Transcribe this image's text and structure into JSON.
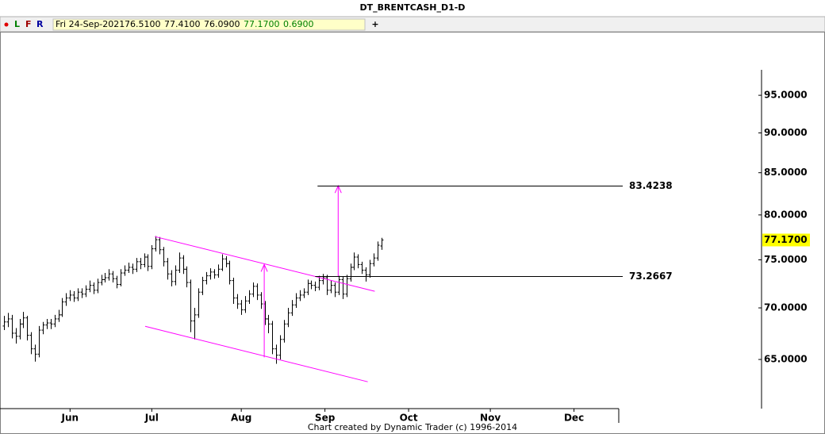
{
  "header": {
    "title": "DT_BRENTCASH_D1-D",
    "buttons": [
      "L",
      "F",
      "R"
    ],
    "date": "Fri 24-Sep-2021",
    "quote": [
      "76.5100",
      "77.4100",
      "76.0900",
      "77.1700",
      "0.6900"
    ]
  },
  "footer": "Chart created by Dynamic Trader  (c) 1996-2014",
  "chart_data": {
    "type": "ohlc",
    "color": "#000000",
    "annotation_color": "#ff00ff",
    "log_scale": true,
    "xlim": [
      -1,
      158
    ],
    "ylim": [
      60.57,
      98.54
    ],
    "xticks": [
      {
        "value": 17,
        "label": "Jun"
      },
      {
        "value": 38,
        "label": "Jul"
      },
      {
        "value": 61,
        "label": "Aug"
      },
      {
        "value": 82.5,
        "label": "Sep"
      },
      {
        "value": 104,
        "label": "Oct"
      },
      {
        "value": 125,
        "label": "Nov"
      },
      {
        "value": 146.5,
        "label": "Dec"
      }
    ],
    "yticks": [
      {
        "value": 65,
        "label": "65.0000"
      },
      {
        "value": 70,
        "label": "70.0000"
      },
      {
        "value": 75,
        "label": "75.0000"
      },
      {
        "value": 80,
        "label": "80.0000"
      },
      {
        "value": 85,
        "label": "85.0000"
      },
      {
        "value": 90,
        "label": "90.0000"
      },
      {
        "value": 95,
        "label": "95.0000"
      }
    ],
    "open": [
      68.2,
      68.6,
      68.9,
      67.5,
      67.2,
      68.4,
      69.0,
      67.3,
      66.0,
      65.5,
      67.8,
      68.3,
      68.5,
      68.4,
      68.9,
      69.3,
      70.6,
      71.0,
      71.3,
      71.0,
      71.6,
      71.4,
      71.9,
      72.3,
      71.8,
      72.6,
      72.9,
      73.1,
      73.5,
      73.0,
      72.4,
      73.6,
      73.9,
      74.2,
      74.0,
      74.8,
      74.5,
      75.3,
      74.3,
      76.2,
      77.2,
      76.1,
      74.8,
      73.5,
      72.7,
      73.9,
      75.2,
      74.0,
      72.6,
      68.7,
      69.3,
      71.6,
      72.8,
      73.3,
      73.7,
      73.4,
      74.0,
      75.1,
      74.6,
      72.8,
      71.0,
      70.4,
      69.8,
      70.7,
      71.4,
      72.2,
      71.3,
      70.4,
      68.9,
      68.4,
      66.0,
      65.4,
      66.9,
      68.4,
      69.5,
      70.3,
      71.0,
      71.3,
      71.6,
      72.5,
      72.3,
      72.1,
      72.8,
      73.1,
      71.8,
      72.3,
      71.6,
      72.9,
      71.4,
      73.0,
      74.2,
      75.3,
      74.5,
      73.9,
      73.4,
      74.6,
      75.2,
      76.51
    ],
    "high": [
      69.2,
      69.5,
      69.3,
      68.0,
      68.9,
      69.6,
      69.2,
      67.6,
      66.4,
      68.2,
      68.6,
      68.9,
      68.9,
      69.3,
      69.8,
      71.0,
      71.5,
      71.8,
      71.7,
      72.0,
      72.0,
      72.3,
      72.8,
      72.6,
      73.0,
      73.4,
      73.6,
      74.0,
      73.8,
      73.3,
      74.0,
      74.4,
      74.7,
      74.6,
      75.2,
      75.2,
      75.7,
      75.6,
      76.6,
      77.6,
      77.5,
      76.4,
      75.2,
      73.9,
      74.4,
      75.8,
      75.5,
      74.3,
      72.9,
      70.0,
      72.0,
      73.2,
      73.7,
      74.1,
      74.0,
      74.5,
      75.6,
      75.4,
      74.9,
      73.1,
      71.4,
      70.8,
      71.2,
      71.8,
      72.6,
      72.5,
      71.6,
      70.7,
      69.3,
      68.7,
      66.4,
      67.3,
      68.8,
      70.0,
      70.8,
      71.5,
      71.8,
      72.0,
      72.9,
      72.8,
      72.7,
      73.3,
      73.5,
      73.4,
      72.8,
      72.6,
      73.3,
      73.2,
      73.4,
      74.6,
      75.8,
      75.6,
      74.8,
      74.2,
      75.0,
      75.7,
      77.0,
      77.41
    ],
    "low": [
      67.8,
      68.1,
      67.0,
      66.5,
      66.9,
      68.0,
      66.8,
      65.5,
      64.8,
      65.2,
      67.4,
      67.9,
      67.9,
      68.1,
      68.6,
      69.1,
      70.2,
      70.7,
      70.6,
      70.7,
      71.0,
      71.1,
      71.6,
      71.4,
      71.5,
      72.3,
      72.6,
      72.8,
      72.6,
      72.0,
      72.2,
      73.3,
      73.6,
      73.5,
      73.7,
      74.0,
      74.2,
      73.8,
      74.0,
      75.9,
      75.6,
      74.3,
      72.9,
      72.2,
      72.3,
      73.6,
      73.5,
      72.1,
      67.6,
      66.9,
      69.0,
      71.3,
      72.4,
      72.9,
      73.0,
      73.1,
      73.8,
      74.2,
      72.4,
      70.4,
      69.9,
      69.3,
      69.5,
      70.4,
      71.1,
      70.8,
      69.9,
      68.3,
      67.5,
      65.5,
      64.6,
      65.0,
      66.6,
      68.1,
      69.2,
      70.0,
      70.7,
      71.0,
      71.3,
      71.9,
      71.7,
      71.8,
      72.4,
      71.3,
      71.5,
      71.1,
      71.3,
      70.9,
      71.1,
      72.7,
      73.9,
      74.1,
      73.5,
      72.7,
      73.1,
      74.3,
      74.9,
      76.09
    ],
    "close": [
      68.6,
      68.9,
      67.5,
      67.2,
      68.4,
      69.0,
      67.3,
      66.0,
      65.5,
      67.8,
      68.3,
      68.5,
      68.4,
      68.9,
      69.3,
      70.6,
      71.0,
      71.3,
      71.0,
      71.6,
      71.4,
      71.9,
      72.3,
      71.8,
      72.6,
      72.9,
      73.1,
      73.5,
      73.0,
      72.4,
      73.6,
      73.9,
      74.2,
      74.0,
      74.8,
      74.5,
      75.3,
      74.3,
      76.2,
      77.2,
      76.1,
      74.8,
      73.5,
      72.7,
      73.9,
      75.2,
      74.0,
      72.6,
      68.7,
      69.3,
      71.6,
      72.8,
      73.3,
      73.7,
      73.4,
      74.0,
      75.1,
      74.6,
      72.8,
      71.0,
      70.4,
      69.8,
      70.7,
      71.4,
      72.2,
      71.3,
      70.4,
      68.9,
      68.4,
      66.0,
      65.4,
      66.9,
      68.4,
      69.5,
      70.3,
      71.0,
      71.3,
      71.6,
      72.5,
      72.3,
      72.1,
      72.8,
      73.1,
      71.8,
      72.3,
      71.6,
      72.9,
      71.4,
      73.0,
      74.2,
      75.3,
      74.5,
      73.9,
      73.4,
      74.6,
      75.2,
      76.6,
      77.17
    ],
    "levels": [
      {
        "value": 83.4238,
        "label": "83.4238",
        "x": 80.6
      },
      {
        "value": 73.2667,
        "label": "73.2667",
        "x": 80
      }
    ],
    "last_price": {
      "value": 77.17,
      "label": "77.1700"
    },
    "trendlines": [
      {
        "x": [
          38.8,
          95.3
        ],
        "y": [
          77.55,
          71.69
        ]
      },
      {
        "x": [
          36.3,
          93.5
        ],
        "y": [
          68.17,
          62.95
        ]
      }
    ],
    "arrows": [
      {
        "x": 66.9,
        "y": [
          65.2,
          74.5
        ]
      },
      {
        "x": 85.9,
        "y": [
          73.27,
          83.42
        ]
      }
    ]
  }
}
